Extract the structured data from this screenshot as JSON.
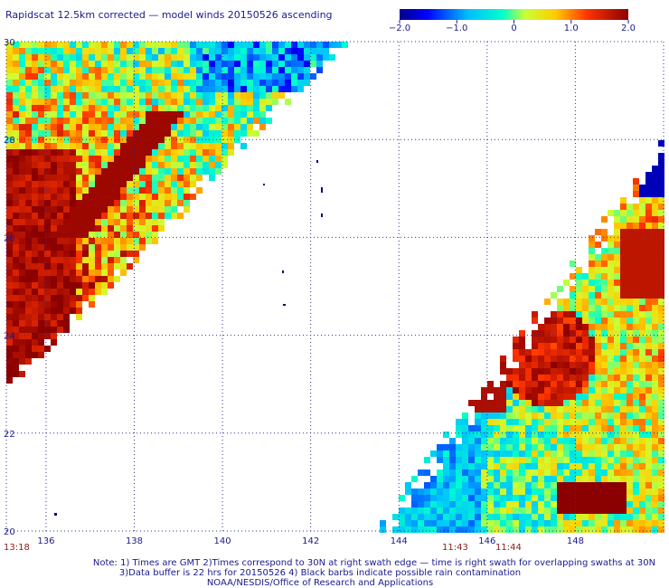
{
  "title": "Rapidscat 12.5km corrected — model winds 20150526 ascending",
  "chart_data": {
    "type": "heatmap",
    "title": "Rapidscat 12.5km corrected — model winds 20150526 ascending",
    "x_ticks": [
      136,
      138,
      140,
      142,
      144,
      146,
      148
    ],
    "y_ticks": [
      20,
      22,
      24,
      26,
      28,
      30
    ],
    "xlim": [
      135.1,
      150.0
    ],
    "ylim": [
      20,
      30
    ],
    "grid": true,
    "colorbar": {
      "min": -2.0,
      "max": 2.0,
      "ticks": [
        "−2.0",
        "−1.0",
        "0",
        "1.0",
        "2.0"
      ],
      "placement": "top-right"
    },
    "swaths": [
      {
        "time": "13:18",
        "extent": "upper-left",
        "value_range": [
          -2.0,
          2.0
        ]
      },
      {
        "time": "11:43",
        "extent": "lower-right",
        "value_range": [
          -2.0,
          2.0
        ]
      },
      {
        "time": "11:44",
        "extent": "lower-right",
        "value_range": [
          -2.0,
          2.0
        ]
      }
    ],
    "y_tick_labels": [
      "20",
      "22",
      "24",
      "26",
      "28",
      "30"
    ],
    "x_tick_labels": [
      "136",
      "138",
      "140",
      "142",
      "144",
      "146",
      "148"
    ]
  },
  "times": [
    "13:18",
    "11:43",
    "11:44"
  ],
  "note": {
    "line1": "Note: 1) Times are GMT 2)Times correspond to 30N at right swath edge — time is right swath for overlapping swaths at 30N",
    "line2": "3)Data buffer is 22 hrs for 20150526 4) Black barbs indicate possible rain contamination",
    "line3": "NOAA/NESDIS/Office of Research and Applications"
  },
  "colors": {
    "label": "#1a1a8c",
    "time": "#8b1a1a",
    "island": "#000080"
  }
}
